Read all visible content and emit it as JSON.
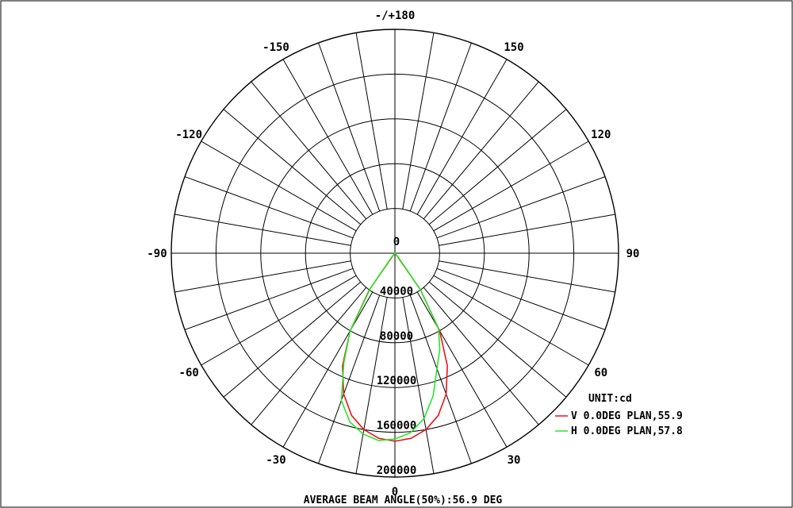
{
  "chart_data": {
    "type": "polar",
    "angle_labels": [
      {
        "deg": 0,
        "text": "0"
      },
      {
        "deg": 30,
        "text": "30"
      },
      {
        "deg": 60,
        "text": "60"
      },
      {
        "deg": 90,
        "text": "90"
      },
      {
        "deg": 120,
        "text": "120"
      },
      {
        "deg": 150,
        "text": "150"
      },
      {
        "deg": 180,
        "text": "-/+180"
      },
      {
        "deg": -150,
        "text": "-150"
      },
      {
        "deg": -120,
        "text": "-120"
      },
      {
        "deg": -90,
        "text": "-90"
      },
      {
        "deg": -60,
        "text": "-60"
      },
      {
        "deg": -30,
        "text": "-30"
      }
    ],
    "radial_ticks": [
      {
        "value": 0,
        "text": "0"
      },
      {
        "value": 40000,
        "text": "40000"
      },
      {
        "value": 80000,
        "text": "80000"
      },
      {
        "value": 120000,
        "text": "120000"
      },
      {
        "value": 160000,
        "text": "160000"
      },
      {
        "value": 200000,
        "text": "200000"
      }
    ],
    "rmax": 200000,
    "grid": true,
    "unit_label": "UNIT:cd",
    "series": [
      {
        "name": "V 0.0DEG PLAN,55.9",
        "color": "#e8141e",
        "angles": [
          -90,
          -60,
          -40,
          -35,
          -30,
          -25,
          -20,
          -15,
          -10,
          -5,
          0,
          5,
          10,
          15,
          20,
          25,
          30,
          35,
          40,
          60,
          90
        ],
        "values": [
          0,
          0,
          2000,
          40000,
          80000,
          111000,
          134000,
          150000,
          160000,
          166000,
          168000,
          166000,
          160000,
          150000,
          134000,
          111000,
          80000,
          40000,
          2000,
          0,
          0
        ]
      },
      {
        "name": "H 0.0DEG PLAN,57.8",
        "color": "#28e628",
        "angles": [
          -90,
          -60,
          -40,
          -35,
          -30,
          -25,
          -20,
          -15,
          -10,
          -5,
          0,
          5,
          10,
          15,
          20,
          25,
          30,
          35,
          40,
          60,
          90
        ],
        "values": [
          0,
          0,
          5000,
          38000,
          80000,
          108000,
          140000,
          156000,
          164000,
          168000,
          166000,
          161000,
          150000,
          132000,
          110000,
          95000,
          78000,
          40000,
          5000,
          0,
          0
        ]
      }
    ],
    "footer": "AVERAGE BEAM ANGLE(50%):56.9 DEG"
  }
}
